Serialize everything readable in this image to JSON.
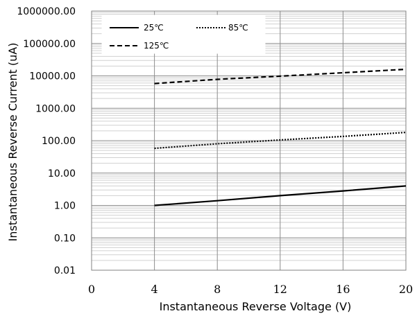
{
  "chart_data": {
    "type": "line",
    "title": "",
    "xlabel": "Instantaneous  Reverse Voltage (V)",
    "ylabel": "Instantaneous Reverse Current (uA)",
    "x_scale": "linear",
    "y_scale": "log",
    "xlim": [
      0,
      20
    ],
    "ylim": [
      0.01,
      1000000
    ],
    "x_ticks": [
      "0",
      "4",
      "8",
      "12",
      "16",
      "20"
    ],
    "y_ticks": [
      "0.01",
      "0.10",
      "1.00",
      "10.00",
      "100.00",
      "1000.00",
      "10000.00",
      "100000.00",
      "1000000.00"
    ],
    "grid": true,
    "legend_position": "top-left",
    "series": [
      {
        "name": "25℃",
        "style": "solid",
        "color": "#000000",
        "x": [
          4,
          8,
          12,
          16,
          20
        ],
        "y": [
          1.0,
          1.4,
          2.0,
          2.8,
          4.0
        ]
      },
      {
        "name": "85℃",
        "style": "dotted",
        "color": "#000000",
        "x": [
          4,
          8,
          12,
          16,
          20
        ],
        "y": [
          58,
          80,
          105,
          135,
          180
        ]
      },
      {
        "name": "125℃",
        "style": "dashed",
        "color": "#000000",
        "x": [
          4,
          8,
          12,
          16,
          20
        ],
        "y": [
          5800,
          7800,
          9800,
          12500,
          16000
        ]
      }
    ]
  }
}
